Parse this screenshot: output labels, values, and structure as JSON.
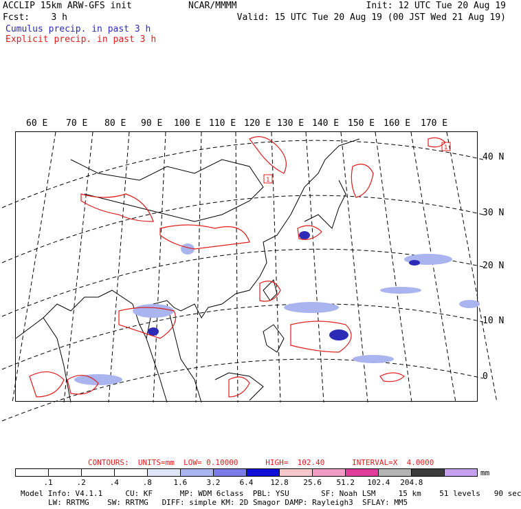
{
  "header": {
    "left_line1": "ACCLIP 15km ARW-GFS init",
    "left_line2": "Fcst:    3 h",
    "center": "NCAR/MMMM",
    "right_line1": "Init: 12 UTC Tue 20 Aug 19",
    "right_line2": "Valid: 15 UTC Tue 20 Aug 19 (00 JST Wed 21 Aug 19)",
    "legend_cumulus": "Cumulus precip. in past 3 h",
    "legend_explicit": "Explicit precip. in past 3 h"
  },
  "map": {
    "lon_labels": [
      "60 E",
      "70 E",
      "80 E",
      "90 E",
      "100 E",
      "110 E",
      "120 E",
      "130 E",
      "140 E",
      "150 E",
      "160 E",
      "170 E"
    ],
    "lat_labels": [
      "40 N",
      "30 N",
      "20 N",
      "10 N",
      "0"
    ],
    "box_labels": [
      "1",
      "1"
    ],
    "colors": {
      "cumulus": "#2b2bb8",
      "explicit": "#e01b1b",
      "coast": "#000000"
    }
  },
  "footer": {
    "contours": "CONTOURS:  UNITS=mm  LOW= 0.10000      HIGH=  102.40      INTERVAL=X  4.0000",
    "units": "mm",
    "colorbar_ticks": [
      ".1",
      ".2",
      ".4",
      ".8",
      "1.6",
      "3.2",
      "6.4",
      "12.8",
      "25.6",
      "51.2",
      "102.4",
      "204.8"
    ],
    "colorbar_colors": [
      "#ffffff",
      "#ffffff",
      "#ffffff",
      "#ffffff",
      "#dfe6f7",
      "#aab4ee",
      "#7a7ae8",
      "#0f0fd8",
      "#f6c8cc",
      "#f09ac4",
      "#e03c9c",
      "#b4b4b4",
      "#3c3c3c",
      "#c8a0f0"
    ],
    "model_line1": "Model Info: V4.1.1     CU: KF      MP: WDM 6class  PBL: YSU       SF: Noah LSM     15 km    51 levels   90 sec",
    "model_line2": "LW: RRTMG    SW: RRTMG   DIFF: simple KM: 2D Smagor DAMP: Rayleigh3  SFLAY: MM5"
  }
}
